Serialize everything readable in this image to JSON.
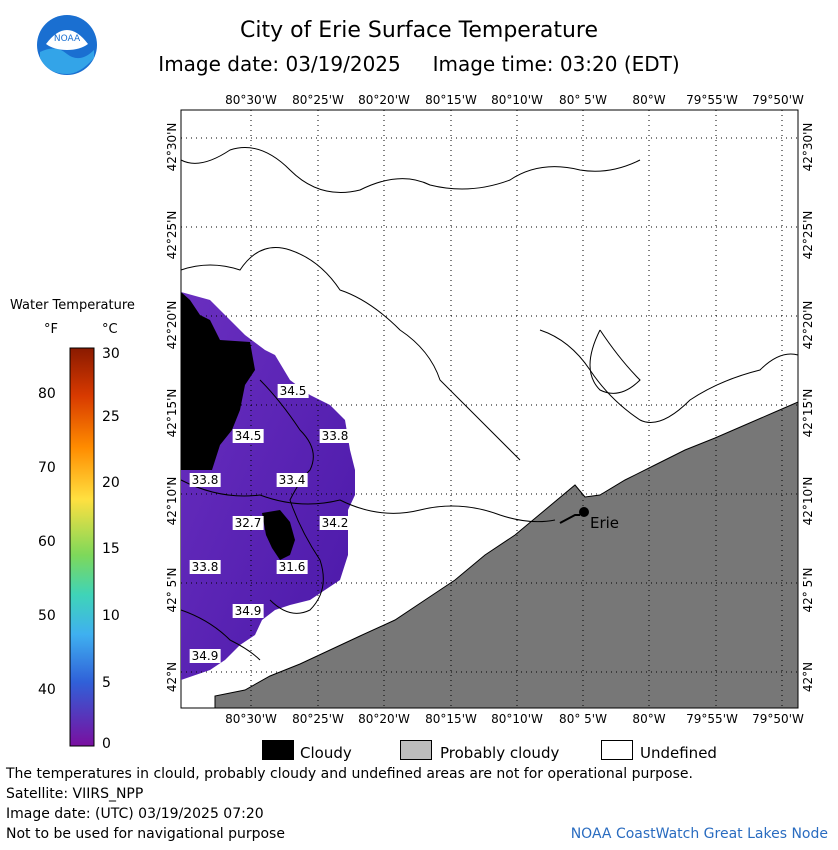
{
  "header": {
    "title": "City of Erie Surface Temperature",
    "image_date_label": "Image date: 03/19/2025",
    "image_time_label": "Image time: 03:20 (EDT)",
    "logo_text": "NOAA"
  },
  "map": {
    "top_lon_labels": [
      "80°30'W",
      "80°25'W",
      "80°20'W",
      "80°15'W",
      "80°10'W",
      "80° 5'W",
      "80°W",
      "79°55'W",
      "79°50'W"
    ],
    "bottom_lon_labels": [
      "80°30'W",
      "80°25'W",
      "80°20'W",
      "80°15'W",
      "80°10'W",
      "80° 5'W",
      "80°W",
      "79°55'W",
      "79°50'W"
    ],
    "lat_labels": [
      "42°30'N",
      "42°25'N",
      "42°20'N",
      "42°15'N",
      "42°10'N",
      "42° 5'N",
      "42°N"
    ],
    "city_label": "Erie",
    "temperature_labels": [
      "34.5",
      "34.5",
      "33.8",
      "33.8",
      "33.4",
      "32.7",
      "34.2",
      "33.8",
      "31.6",
      "34.9",
      "34.9"
    ]
  },
  "legend": {
    "title": "Water Temperature",
    "unit_f": "°F",
    "unit_c": "°C",
    "f_ticks": [
      "80",
      "70",
      "60",
      "50",
      "40"
    ],
    "c_ticks": [
      "30",
      "25",
      "20",
      "15",
      "10",
      "5",
      "0"
    ]
  },
  "key": {
    "cloudy": "Cloudy",
    "probably_cloudy": "Probably cloudy",
    "undefined": "Undefined",
    "colors": {
      "cloudy": "#000000",
      "probably_cloudy": "#bdbdbd",
      "undefined": "#ffffff",
      "land": "#777777"
    }
  },
  "footer": {
    "line1": "The temperatures in clould, probably cloudy and undefined areas are not for operational purpose.",
    "line2": "Satellite: VIIRS_NPP",
    "line3": "Image date: (UTC) 03/19/2025  07:20",
    "line4": "Not to be used for navigational purpose",
    "credit": "NOAA CoastWatch Great Lakes Node"
  }
}
